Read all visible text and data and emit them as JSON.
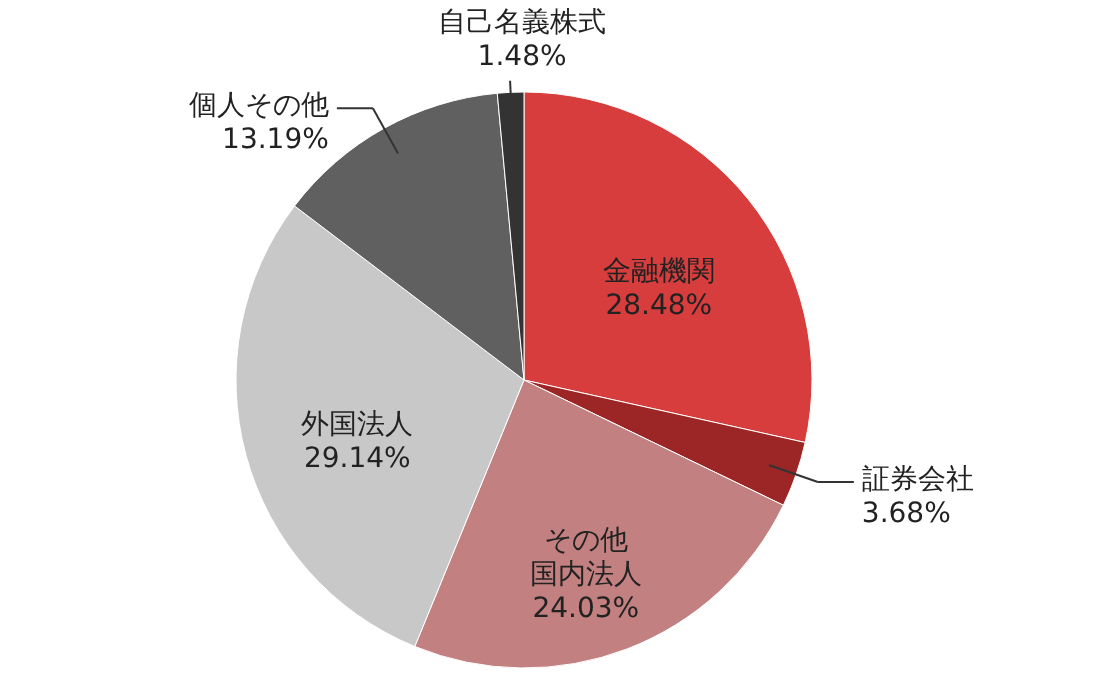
{
  "chart_data": {
    "type": "pie",
    "categories": [
      "金融機関",
      "証券会社",
      "その他国内法人",
      "外国法人",
      "個人その他",
      "自己名義株式"
    ],
    "values": [
      28.48,
      3.68,
      24.03,
      29.14,
      13.19,
      1.48
    ],
    "value_labels": [
      "28.48%",
      "3.68%",
      "24.03%",
      "29.14%",
      "13.19%",
      "1.48%"
    ],
    "colors": [
      "#d73d3d",
      "#9c2626",
      "#c38080",
      "#c8c8c8",
      "#606060",
      "#333333"
    ]
  }
}
